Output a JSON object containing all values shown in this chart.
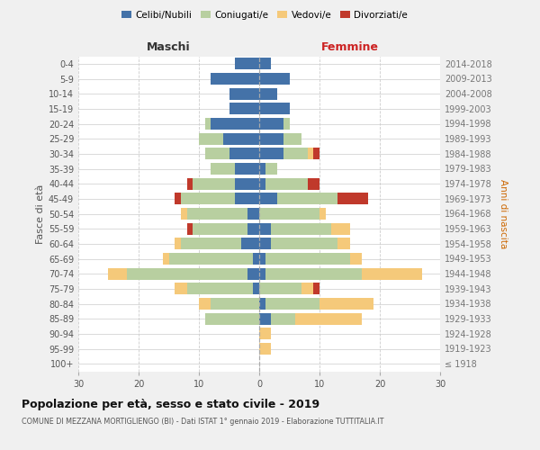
{
  "age_groups": [
    "100+",
    "95-99",
    "90-94",
    "85-89",
    "80-84",
    "75-79",
    "70-74",
    "65-69",
    "60-64",
    "55-59",
    "50-54",
    "45-49",
    "40-44",
    "35-39",
    "30-34",
    "25-29",
    "20-24",
    "15-19",
    "10-14",
    "5-9",
    "0-4"
  ],
  "birth_years": [
    "≤ 1918",
    "1919-1923",
    "1924-1928",
    "1929-1933",
    "1934-1938",
    "1939-1943",
    "1944-1948",
    "1949-1953",
    "1954-1958",
    "1959-1963",
    "1964-1968",
    "1969-1973",
    "1974-1978",
    "1979-1983",
    "1984-1988",
    "1989-1993",
    "1994-1998",
    "1999-2003",
    "2004-2008",
    "2009-2013",
    "2014-2018"
  ],
  "male": {
    "celibi": [
      0,
      0,
      0,
      0,
      0,
      1,
      2,
      1,
      3,
      2,
      2,
      4,
      4,
      4,
      5,
      6,
      8,
      5,
      5,
      8,
      4
    ],
    "coniugati": [
      0,
      0,
      0,
      9,
      8,
      11,
      20,
      14,
      10,
      9,
      10,
      9,
      7,
      4,
      4,
      4,
      1,
      0,
      0,
      0,
      0
    ],
    "vedovi": [
      0,
      0,
      0,
      0,
      2,
      2,
      3,
      1,
      1,
      0,
      1,
      0,
      0,
      0,
      0,
      0,
      0,
      0,
      0,
      0,
      0
    ],
    "divorziati": [
      0,
      0,
      0,
      0,
      0,
      0,
      0,
      0,
      0,
      1,
      0,
      1,
      1,
      0,
      0,
      0,
      0,
      0,
      0,
      0,
      0
    ]
  },
  "female": {
    "nubili": [
      0,
      0,
      0,
      2,
      1,
      0,
      1,
      1,
      2,
      2,
      0,
      3,
      1,
      1,
      4,
      4,
      4,
      5,
      3,
      5,
      2
    ],
    "coniugate": [
      0,
      0,
      0,
      4,
      9,
      7,
      16,
      14,
      11,
      10,
      10,
      10,
      7,
      2,
      4,
      3,
      1,
      0,
      0,
      0,
      0
    ],
    "vedove": [
      0,
      2,
      2,
      11,
      9,
      2,
      10,
      2,
      2,
      3,
      1,
      0,
      0,
      0,
      1,
      0,
      0,
      0,
      0,
      0,
      0
    ],
    "divorziate": [
      0,
      0,
      0,
      0,
      0,
      1,
      0,
      0,
      0,
      0,
      0,
      5,
      2,
      0,
      1,
      0,
      0,
      0,
      0,
      0,
      0
    ]
  },
  "colors": {
    "celibi": "#4472a8",
    "coniugati": "#b8cfa0",
    "vedovi": "#f5c97a",
    "divorziati": "#c0392b"
  },
  "xlim": 30,
  "title": "Popolazione per età, sesso e stato civile - 2019",
  "subtitle": "COMUNE DI MEZZANA MORTIGLIENGO (BI) - Dati ISTAT 1° gennaio 2019 - Elaborazione TUTTITALIA.IT",
  "ylabel_left": "Fasce di età",
  "ylabel_right": "Anni di nascita",
  "xlabel_male": "Maschi",
  "xlabel_female": "Femmine",
  "bg_color": "#f0f0f0",
  "plot_bg": "#ffffff",
  "grid_color": "#cccccc"
}
